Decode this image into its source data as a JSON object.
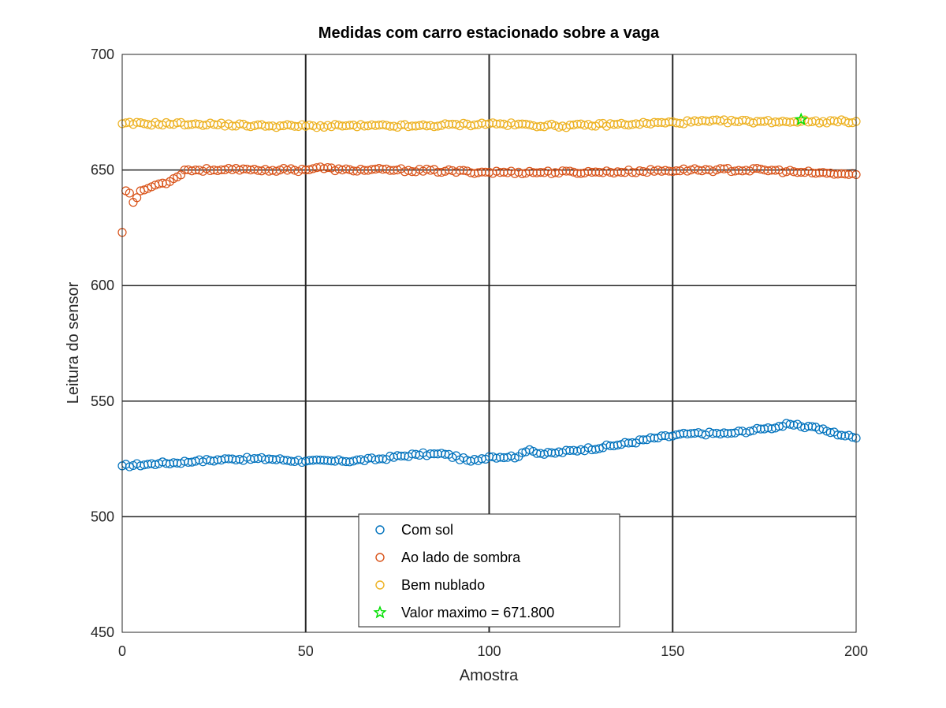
{
  "chart_data": {
    "type": "scatter",
    "title": "Medidas com carro estacionado sobre a vaga",
    "xlabel": "Amostra",
    "ylabel": "Leitura do sensor",
    "xlim": [
      0,
      200
    ],
    "ylim": [
      450,
      700
    ],
    "xticks": [
      "0",
      "50",
      "100",
      "150",
      "200"
    ],
    "yticks": [
      "450",
      "500",
      "550",
      "600",
      "650",
      "700"
    ],
    "grid": true,
    "legend_position": "bottom-center",
    "series": [
      {
        "name": "Com sol",
        "marker": "circle",
        "color": "#0072BD",
        "keypoints": [
          [
            0,
            522
          ],
          [
            10,
            523
          ],
          [
            20,
            524
          ],
          [
            30,
            525
          ],
          [
            40,
            525
          ],
          [
            50,
            524
          ],
          [
            60,
            524
          ],
          [
            70,
            525
          ],
          [
            80,
            527
          ],
          [
            88,
            527
          ],
          [
            95,
            524
          ],
          [
            100,
            526
          ],
          [
            108,
            526
          ],
          [
            111,
            529
          ],
          [
            115,
            527
          ],
          [
            125,
            529
          ],
          [
            135,
            531
          ],
          [
            145,
            534
          ],
          [
            155,
            536
          ],
          [
            165,
            536
          ],
          [
            175,
            538
          ],
          [
            182,
            540
          ],
          [
            185,
            539
          ],
          [
            188,
            539
          ],
          [
            192,
            537
          ],
          [
            200,
            534
          ]
        ]
      },
      {
        "name": "Ao lado de sombra",
        "marker": "circle",
        "color": "#D95319",
        "keypoints": [
          [
            0,
            623
          ],
          [
            1,
            641
          ],
          [
            2,
            640
          ],
          [
            3,
            636
          ],
          [
            4,
            638
          ],
          [
            5,
            641
          ],
          [
            7,
            642
          ],
          [
            10,
            644
          ],
          [
            13,
            645
          ],
          [
            15,
            647
          ],
          [
            17,
            650
          ],
          [
            25,
            650
          ],
          [
            35,
            650
          ],
          [
            50,
            650
          ],
          [
            53,
            651
          ],
          [
            60,
            650
          ],
          [
            75,
            650
          ],
          [
            100,
            649
          ],
          [
            130,
            649
          ],
          [
            155,
            650
          ],
          [
            175,
            650
          ],
          [
            185,
            649
          ],
          [
            200,
            648
          ]
        ]
      },
      {
        "name": "Bem nublado",
        "marker": "circle",
        "color": "#EDB120",
        "keypoints": [
          [
            0,
            670
          ],
          [
            20,
            670
          ],
          [
            40,
            669
          ],
          [
            60,
            669
          ],
          [
            80,
            669
          ],
          [
            100,
            670
          ],
          [
            120,
            669
          ],
          [
            140,
            670
          ],
          [
            160,
            671
          ],
          [
            175,
            671
          ],
          [
            185,
            671
          ],
          [
            200,
            671
          ]
        ]
      },
      {
        "name": "Valor maximo = 671.800",
        "marker": "star",
        "color": "#00E000",
        "x": [
          185
        ],
        "y": [
          671.8
        ]
      }
    ]
  }
}
